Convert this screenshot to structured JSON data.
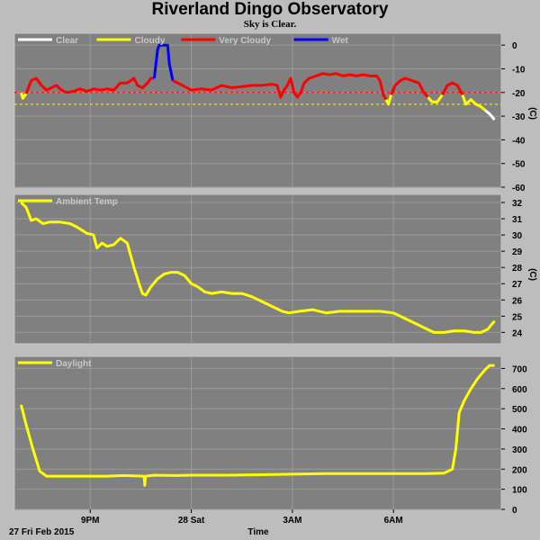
{
  "header": {
    "title": "Riverland Dingo Observatory",
    "subtitle": "Sky is Clear."
  },
  "footer": {
    "date_label": "27 Fri Feb 2015",
    "time_label": "Time",
    "x_ticks": [
      "9PM",
      "28 Sat",
      "3AM",
      "6AM"
    ]
  },
  "colors": {
    "plot_bg": "#808080",
    "frame": "#c8c8c8",
    "clear": "#ffffff",
    "cloudy": "#ffff00",
    "very_cloudy": "#ff0000",
    "wet": "#0000ff",
    "ambient": "#ffff00",
    "daylight": "#ffff00"
  },
  "chart_data": [
    {
      "type": "line",
      "name": "sky",
      "ylabel": "(C)",
      "ylim": [
        -60,
        5
      ],
      "yticks": [
        "0",
        "-10",
        "-20",
        "-30",
        "-40",
        "-50",
        "-60"
      ],
      "ytick_values": [
        0,
        -10,
        -20,
        -30,
        -40,
        -50,
        -60
      ],
      "thresholds": [
        -20,
        -25
      ],
      "legend": [
        {
          "label": "Clear",
          "color": "#ffffff"
        },
        {
          "label": "Cloudy",
          "color": "#ffff00"
        },
        {
          "label": "Very Cloudy",
          "color": "#ff0000"
        },
        {
          "label": "Wet",
          "color": "#0000ff"
        }
      ],
      "series": [
        {
          "name": "Cloudy",
          "color": "#ffff00",
          "points": [
            [
              18.95,
              -20
            ],
            [
              19.0,
              -22.5
            ],
            [
              19.1,
              -20.5
            ]
          ]
        },
        {
          "name": "Very Cloudy",
          "color": "#ff0000",
          "points": [
            [
              19.1,
              -20.5
            ],
            [
              19.25,
              -15
            ],
            [
              19.4,
              -14
            ],
            [
              19.55,
              -17
            ],
            [
              19.7,
              -19
            ],
            [
              19.85,
              -18
            ],
            [
              20.0,
              -17
            ],
            [
              20.15,
              -19
            ],
            [
              20.3,
              -20
            ],
            [
              20.5,
              -19.5
            ],
            [
              20.7,
              -18.5
            ],
            [
              20.9,
              -19.5
            ],
            [
              21.1,
              -18.5
            ],
            [
              21.3,
              -19
            ],
            [
              21.5,
              -18.5
            ],
            [
              21.7,
              -19
            ],
            [
              21.9,
              -16
            ],
            [
              22.1,
              -16
            ],
            [
              22.2,
              -15
            ],
            [
              22.3,
              -14
            ],
            [
              22.4,
              -17
            ],
            [
              22.55,
              -18
            ],
            [
              22.7,
              -16
            ],
            [
              22.8,
              -14
            ],
            [
              22.9,
              -14
            ]
          ]
        },
        {
          "name": "Wet",
          "color": "#0000ff",
          "points": [
            [
              22.9,
              -14
            ],
            [
              23.0,
              -2
            ],
            [
              23.05,
              0
            ],
            [
              23.3,
              0
            ],
            [
              23.35,
              -8
            ],
            [
              23.45,
              -15
            ]
          ]
        },
        {
          "name": "Very Cloudy",
          "color": "#ff0000",
          "points": [
            [
              23.45,
              -15
            ],
            [
              23.6,
              -16
            ],
            [
              23.8,
              -17.5
            ],
            [
              24.0,
              -19
            ],
            [
              24.3,
              -18.5
            ],
            [
              24.6,
              -19
            ],
            [
              24.9,
              -17
            ],
            [
              25.2,
              -18
            ],
            [
              25.5,
              -17.5
            ],
            [
              25.8,
              -17
            ],
            [
              26.1,
              -17
            ],
            [
              26.4,
              -16.5
            ],
            [
              26.55,
              -17
            ],
            [
              26.65,
              -22
            ],
            [
              26.75,
              -19
            ],
            [
              26.85,
              -17
            ],
            [
              26.95,
              -14
            ],
            [
              27.05,
              -20
            ],
            [
              27.15,
              -22
            ],
            [
              27.25,
              -20
            ],
            [
              27.35,
              -16
            ],
            [
              27.5,
              -14
            ],
            [
              27.7,
              -13
            ],
            [
              27.9,
              -12
            ],
            [
              28.1,
              -12.5
            ],
            [
              28.3,
              -12
            ],
            [
              28.5,
              -13
            ],
            [
              28.7,
              -12.5
            ],
            [
              28.9,
              -13
            ],
            [
              29.1,
              -12.5
            ],
            [
              29.3,
              -13
            ],
            [
              29.5,
              -13
            ],
            [
              29.6,
              -15
            ],
            [
              29.7,
              -21
            ],
            [
              29.78,
              -23
            ]
          ]
        },
        {
          "name": "Cloudy",
          "color": "#ffff00",
          "points": [
            [
              29.78,
              -23
            ],
            [
              29.85,
              -25
            ],
            [
              29.93,
              -21
            ]
          ]
        },
        {
          "name": "Very Cloudy",
          "color": "#ff0000",
          "points": [
            [
              29.93,
              -21
            ],
            [
              30.05,
              -17
            ],
            [
              30.2,
              -15
            ],
            [
              30.35,
              -14
            ],
            [
              30.55,
              -15
            ],
            [
              30.75,
              -16
            ],
            [
              30.9,
              -20
            ],
            [
              31.02,
              -22
            ]
          ]
        },
        {
          "name": "Cloudy",
          "color": "#ffff00",
          "points": [
            [
              31.02,
              -22
            ],
            [
              31.15,
              -24
            ],
            [
              31.3,
              -24
            ],
            [
              31.45,
              -21
            ]
          ]
        },
        {
          "name": "Very Cloudy",
          "color": "#ff0000",
          "points": [
            [
              31.45,
              -21
            ],
            [
              31.6,
              -17
            ],
            [
              31.75,
              -16
            ],
            [
              31.9,
              -17
            ],
            [
              32.05,
              -21
            ]
          ]
        },
        {
          "name": "Cloudy",
          "color": "#ffff00",
          "points": [
            [
              32.05,
              -21
            ],
            [
              32.15,
              -25
            ],
            [
              32.3,
              -23
            ],
            [
              32.45,
              -25
            ],
            [
              32.6,
              -26
            ],
            [
              32.72,
              -27.5
            ]
          ]
        },
        {
          "name": "Clear",
          "color": "#ffffff",
          "points": [
            [
              32.72,
              -27.5
            ],
            [
              32.85,
              -29
            ],
            [
              33.0,
              -31.5
            ]
          ]
        }
      ]
    },
    {
      "type": "line",
      "name": "ambient",
      "ylabel": "(C)",
      "ylim": [
        23.3,
        32.5
      ],
      "yticks": [
        "32",
        "31",
        "30",
        "29",
        "28",
        "27",
        "26",
        "25",
        "24"
      ],
      "ytick_values": [
        32,
        31,
        30,
        29,
        28,
        27,
        26,
        25,
        24
      ],
      "legend": [
        {
          "label": "Ambient Temp",
          "color": "#ffff00"
        }
      ],
      "series": [
        {
          "name": "Ambient Temp",
          "color": "#ffff00",
          "points": [
            [
              18.95,
              32.0
            ],
            [
              19.1,
              31.7
            ],
            [
              19.25,
              30.9
            ],
            [
              19.4,
              31.0
            ],
            [
              19.6,
              30.7
            ],
            [
              19.8,
              30.8
            ],
            [
              20.1,
              30.8
            ],
            [
              20.4,
              30.7
            ],
            [
              20.6,
              30.5
            ],
            [
              20.9,
              30.1
            ],
            [
              21.1,
              30.0
            ],
            [
              21.2,
              29.2
            ],
            [
              21.35,
              29.5
            ],
            [
              21.5,
              29.3
            ],
            [
              21.7,
              29.4
            ],
            [
              21.9,
              29.8
            ],
            [
              22.1,
              29.5
            ],
            [
              22.3,
              28.0
            ],
            [
              22.45,
              27.0
            ],
            [
              22.55,
              26.4
            ],
            [
              22.65,
              26.3
            ],
            [
              22.8,
              26.8
            ],
            [
              23.0,
              27.3
            ],
            [
              23.2,
              27.6
            ],
            [
              23.4,
              27.7
            ],
            [
              23.6,
              27.7
            ],
            [
              23.8,
              27.5
            ],
            [
              24.0,
              27.0
            ],
            [
              24.2,
              26.8
            ],
            [
              24.4,
              26.5
            ],
            [
              24.6,
              26.4
            ],
            [
              24.9,
              26.5
            ],
            [
              25.2,
              26.4
            ],
            [
              25.5,
              26.4
            ],
            [
              25.8,
              26.2
            ],
            [
              26.1,
              25.9
            ],
            [
              26.4,
              25.6
            ],
            [
              26.7,
              25.3
            ],
            [
              26.9,
              25.2
            ],
            [
              27.2,
              25.3
            ],
            [
              27.6,
              25.4
            ],
            [
              28.0,
              25.2
            ],
            [
              28.4,
              25.3
            ],
            [
              28.8,
              25.3
            ],
            [
              29.2,
              25.3
            ],
            [
              29.6,
              25.3
            ],
            [
              30.0,
              25.2
            ],
            [
              30.3,
              24.9
            ],
            [
              30.6,
              24.6
            ],
            [
              30.9,
              24.3
            ],
            [
              31.2,
              24.0
            ],
            [
              31.5,
              24.0
            ],
            [
              31.8,
              24.1
            ],
            [
              32.1,
              24.1
            ],
            [
              32.4,
              24.0
            ],
            [
              32.6,
              24.0
            ],
            [
              32.8,
              24.2
            ],
            [
              33.0,
              24.7
            ]
          ]
        }
      ]
    },
    {
      "type": "line",
      "name": "daylight",
      "ylim": [
        0,
        760
      ],
      "yticks": [
        "700",
        "600",
        "500",
        "400",
        "300",
        "200",
        "100",
        "0"
      ],
      "ytick_values": [
        700,
        600,
        500,
        400,
        300,
        200,
        100,
        0
      ],
      "legend": [
        {
          "label": "Daylight",
          "color": "#ffff00"
        }
      ],
      "series": [
        {
          "name": "Daylight",
          "color": "#ffff00",
          "points": [
            [
              18.95,
              520
            ],
            [
              19.1,
              420
            ],
            [
              19.3,
              300
            ],
            [
              19.5,
              190
            ],
            [
              19.7,
              165
            ],
            [
              20.0,
              165
            ],
            [
              20.5,
              165
            ],
            [
              21.0,
              165
            ],
            [
              21.5,
              165
            ],
            [
              22.0,
              168
            ],
            [
              22.6,
              165
            ],
            [
              22.62,
              120
            ],
            [
              22.64,
              165
            ],
            [
              22.9,
              170
            ],
            [
              23.5,
              168
            ],
            [
              24.0,
              170
            ],
            [
              25.0,
              170
            ],
            [
              26.0,
              172
            ],
            [
              27.0,
              175
            ],
            [
              28.0,
              178
            ],
            [
              29.0,
              178
            ],
            [
              30.0,
              178
            ],
            [
              31.0,
              178
            ],
            [
              31.5,
              180
            ],
            [
              31.75,
              200
            ],
            [
              31.85,
              300
            ],
            [
              31.95,
              480
            ],
            [
              32.1,
              540
            ],
            [
              32.3,
              600
            ],
            [
              32.5,
              650
            ],
            [
              32.7,
              690
            ],
            [
              32.85,
              715
            ],
            [
              33.0,
              715
            ]
          ]
        }
      ]
    }
  ]
}
